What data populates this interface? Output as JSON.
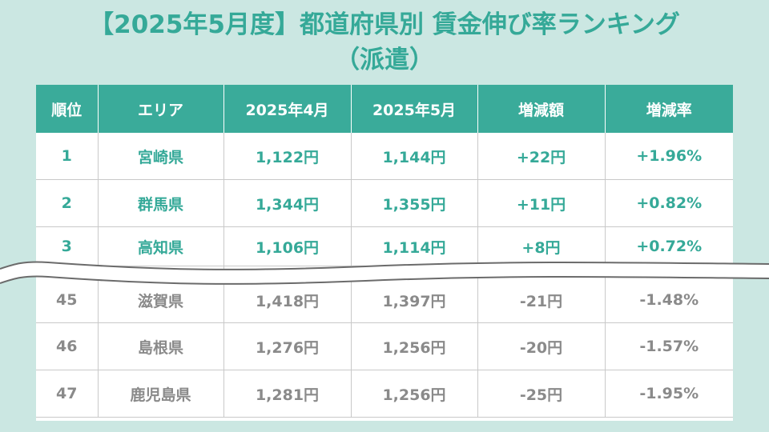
{
  "title": {
    "line1": "【2025年5月度】都道府県別 賃金伸び率ランキング",
    "line2": "（派遣）"
  },
  "table": {
    "headers": [
      "順位",
      "エリア",
      "2025年4月",
      "2025年5月",
      "増減額",
      "増減率"
    ],
    "top_rows": [
      {
        "rank": "1",
        "area": "宮崎県",
        "apr": "1,122円",
        "may": "1,144円",
        "diff": "+22円",
        "rate": "+1.96%"
      },
      {
        "rank": "2",
        "area": "群馬県",
        "apr": "1,344円",
        "may": "1,355円",
        "diff": "+11円",
        "rate": "+0.82%"
      },
      {
        "rank": "3",
        "area": "高知県",
        "apr": "1,106円",
        "may": "1,114円",
        "diff": "+8円",
        "rate": "+0.72%"
      }
    ],
    "bottom_rows": [
      {
        "rank": "45",
        "area": "滋賀県",
        "apr": "1,418円",
        "may": "1,397円",
        "diff": "-21円",
        "rate": "-1.48%"
      },
      {
        "rank": "46",
        "area": "島根県",
        "apr": "1,276円",
        "may": "1,256円",
        "diff": "-20円",
        "rate": "-1.57%"
      },
      {
        "rank": "47",
        "area": "鹿児島県",
        "apr": "1,281円",
        "may": "1,256円",
        "diff": "-25円",
        "rate": "-1.95%"
      }
    ]
  },
  "colors": {
    "background": "#cbe7e2",
    "header": "#3aab9a",
    "top_text": "#35a998",
    "bottom_text": "#8a8a8a"
  }
}
